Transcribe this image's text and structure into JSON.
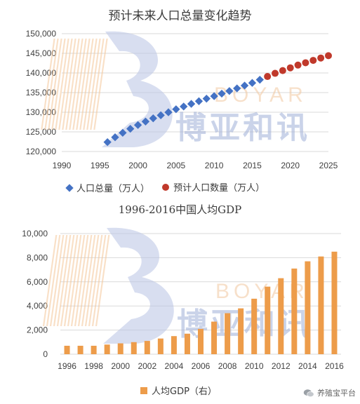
{
  "watermark": {
    "latin": "BOYAR",
    "cjk": "博亚和讯"
  },
  "credit": {
    "text": "养殖宝平台",
    "icon": "wechat-icon"
  },
  "chart_data": [
    {
      "type": "scatter",
      "title": "预计未来人口总量变化趋势",
      "xlabel": "",
      "ylabel": "",
      "xlim": [
        1990,
        2025
      ],
      "ylim": [
        120000,
        150000
      ],
      "x_ticks": [
        "1990",
        "1995",
        "2000",
        "2005",
        "2010",
        "2015",
        "2020",
        "2025"
      ],
      "y_ticks": [
        "120,000",
        "125,000",
        "130,000",
        "135,000",
        "140,000",
        "145,000",
        "150,000"
      ],
      "legend_position": "bottom",
      "grid": true,
      "series": [
        {
          "name": "人口总量（万人）",
          "marker": "diamond",
          "color": "#4472c4",
          "x": [
            1996,
            1997,
            1998,
            1999,
            2000,
            2001,
            2002,
            2003,
            2004,
            2005,
            2006,
            2007,
            2008,
            2009,
            2010,
            2011,
            2012,
            2013,
            2014,
            2015,
            2016
          ],
          "y": [
            122389,
            123626,
            124761,
            125786,
            126743,
            127627,
            128453,
            129227,
            129988,
            130756,
            131448,
            132129,
            132802,
            133450,
            134091,
            134735,
            135404,
            136072,
            136782,
            137462,
            138271
          ]
        },
        {
          "name": "预计人口数量（万人）",
          "marker": "circle",
          "color": "#c0392b",
          "x": [
            2017,
            2018,
            2019,
            2020,
            2021,
            2022,
            2023,
            2024,
            2025
          ],
          "y": [
            139100,
            139900,
            140600,
            141300,
            142000,
            142600,
            143200,
            143800,
            144400
          ]
        }
      ]
    },
    {
      "type": "bar",
      "title": "1996-2016中国人均GDP",
      "xlabel": "",
      "ylabel": "",
      "ylim": [
        0,
        10000
      ],
      "y_ticks": [
        "0",
        "2,000",
        "4,000",
        "6,000",
        "8,000",
        "10,000"
      ],
      "x_tick_labels": [
        "1996",
        "1998",
        "2000",
        "2002",
        "2004",
        "2006",
        "2008",
        "2010",
        "2012",
        "2014",
        "2016"
      ],
      "categories": [
        "1996",
        "1997",
        "1998",
        "1999",
        "2000",
        "2001",
        "2002",
        "2003",
        "2004",
        "2005",
        "2006",
        "2007",
        "2008",
        "2009",
        "2010",
        "2011",
        "2012",
        "2013",
        "2014",
        "2015",
        "2016"
      ],
      "legend_position": "bottom",
      "grid": true,
      "series": [
        {
          "name": "人均GDP（右）",
          "color": "#ed9c4a",
          "values": [
            700,
            700,
            700,
            800,
            900,
            1000,
            1100,
            1300,
            1500,
            1700,
            2100,
            2700,
            3400,
            3800,
            4600,
            5600,
            6300,
            7100,
            7700,
            8100,
            8500
          ]
        }
      ]
    }
  ]
}
